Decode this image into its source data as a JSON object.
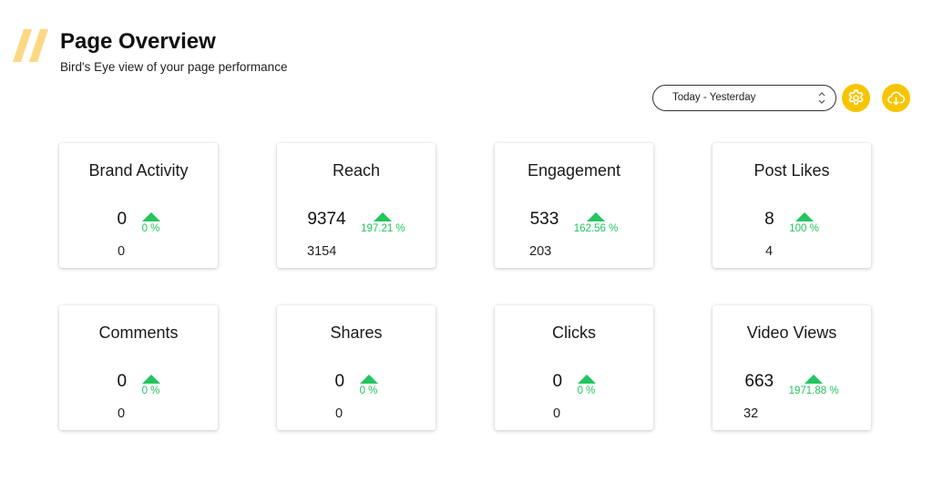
{
  "header": {
    "title": "Page Overview",
    "subtitle": "Bird's Eye view of your page performance"
  },
  "toolbar": {
    "date_range": "Today - Yesterday",
    "settings_icon": "gear-icon",
    "download_icon": "cloud-download-icon",
    "accent_color": "#f7c500"
  },
  "colors": {
    "trend_up": "#22c55e",
    "logo_slashes": "#fdd884"
  },
  "cards": [
    {
      "title": "Brand Activity",
      "value": "0",
      "change": "0 %",
      "previous": "0"
    },
    {
      "title": "Reach",
      "value": "9374",
      "change": "197.21 %",
      "previous": "3154"
    },
    {
      "title": "Engagement",
      "value": "533",
      "change": "162.56 %",
      "previous": "203"
    },
    {
      "title": "Post Likes",
      "value": "8",
      "change": "100 %",
      "previous": "4"
    },
    {
      "title": "Comments",
      "value": "0",
      "change": "0 %",
      "previous": "0"
    },
    {
      "title": "Shares",
      "value": "0",
      "change": "0 %",
      "previous": "0"
    },
    {
      "title": "Clicks",
      "value": "0",
      "change": "0 %",
      "previous": "0"
    },
    {
      "title": "Video Views",
      "value": "663",
      "change": "1971.88 %",
      "previous": "32"
    }
  ]
}
